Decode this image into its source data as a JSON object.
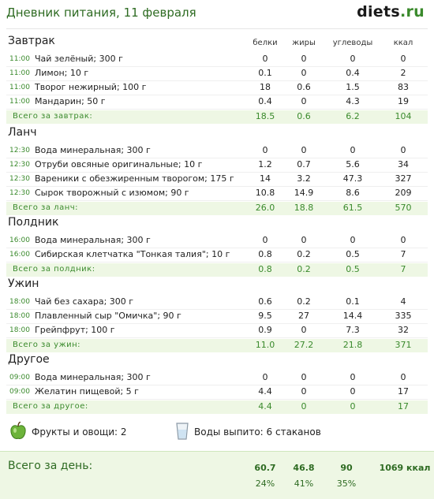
{
  "header": {
    "title": "Дневник питания, 11 февраля",
    "brand_main": "diets",
    "brand_tld": ".ru"
  },
  "columns": {
    "protein": "белки",
    "fat": "жиры",
    "carbs": "углеводы",
    "kcal": "ккал"
  },
  "meals": [
    {
      "title": "Завтрак",
      "items": [
        {
          "time": "11:00",
          "name": "Чай зелёный; 300 г",
          "p": "0",
          "f": "0",
          "c": "0",
          "k": "0"
        },
        {
          "time": "11:00",
          "name": "Лимон; 10 г",
          "p": "0.1",
          "f": "0",
          "c": "0.4",
          "k": "2"
        },
        {
          "time": "11:00",
          "name": "Творог нежирный; 100 г",
          "p": "18",
          "f": "0.6",
          "c": "1.5",
          "k": "83"
        },
        {
          "time": "11:00",
          "name": "Мандарин; 50 г",
          "p": "0.4",
          "f": "0",
          "c": "4.3",
          "k": "19"
        }
      ],
      "total": {
        "label": "Всего за завтрак:",
        "p": "18.5",
        "f": "0.6",
        "c": "6.2",
        "k": "104"
      }
    },
    {
      "title": "Ланч",
      "items": [
        {
          "time": "12:30",
          "name": "Вода минеральная; 300 г",
          "p": "0",
          "f": "0",
          "c": "0",
          "k": "0"
        },
        {
          "time": "12:30",
          "name": "Отруби овсяные оригинальные; 10 г",
          "p": "1.2",
          "f": "0.7",
          "c": "5.6",
          "k": "34"
        },
        {
          "time": "12:30",
          "name": "Вареники с обезжиренным творогом; 175 г",
          "p": "14",
          "f": "3.2",
          "c": "47.3",
          "k": "327"
        },
        {
          "time": "12:30",
          "name": "Сырок творожный с изюмом; 90 г",
          "p": "10.8",
          "f": "14.9",
          "c": "8.6",
          "k": "209"
        }
      ],
      "total": {
        "label": "Всего за ланч:",
        "p": "26.0",
        "f": "18.8",
        "c": "61.5",
        "k": "570"
      }
    },
    {
      "title": "Полдник",
      "items": [
        {
          "time": "16:00",
          "name": "Вода минеральная; 300 г",
          "p": "0",
          "f": "0",
          "c": "0",
          "k": "0"
        },
        {
          "time": "16:00",
          "name": "Сибирская клетчатка \"Тонкая талия\"; 10 г",
          "p": "0.8",
          "f": "0.2",
          "c": "0.5",
          "k": "7"
        }
      ],
      "total": {
        "label": "Всего за полдник:",
        "p": "0.8",
        "f": "0.2",
        "c": "0.5",
        "k": "7"
      }
    },
    {
      "title": "Ужин",
      "items": [
        {
          "time": "18:00",
          "name": "Чай без сахара; 300 г",
          "p": "0.6",
          "f": "0.2",
          "c": "0.1",
          "k": "4"
        },
        {
          "time": "18:00",
          "name": "Плавленный сыр \"Омичка\"; 90 г",
          "p": "9.5",
          "f": "27",
          "c": "14.4",
          "k": "335"
        },
        {
          "time": "18:00",
          "name": "Грейпфрут; 100 г",
          "p": "0.9",
          "f": "0",
          "c": "7.3",
          "k": "32"
        }
      ],
      "total": {
        "label": "Всего за ужин:",
        "p": "11.0",
        "f": "27.2",
        "c": "21.8",
        "k": "371"
      }
    },
    {
      "title": "Другое",
      "items": [
        {
          "time": "09:00",
          "name": "Вода минеральная; 300 г",
          "p": "0",
          "f": "0",
          "c": "0",
          "k": "0"
        },
        {
          "time": "09:00",
          "name": "Желатин пищевой; 5 г",
          "p": "4.4",
          "f": "0",
          "c": "0",
          "k": "17"
        }
      ],
      "total": {
        "label": "Всего за другое:",
        "p": "4.4",
        "f": "0",
        "c": "0",
        "k": "17"
      }
    }
  ],
  "summary": {
    "fruits": "Фрукты и овощи: 2",
    "water": "Воды выпито: 6 стаканов"
  },
  "day_total": {
    "label": "Всего за день:",
    "p": "60.7",
    "f": "46.8",
    "c": "90",
    "k": "1069 ккал",
    "p_pct": "24%",
    "f_pct": "41%",
    "c_pct": "35%"
  }
}
